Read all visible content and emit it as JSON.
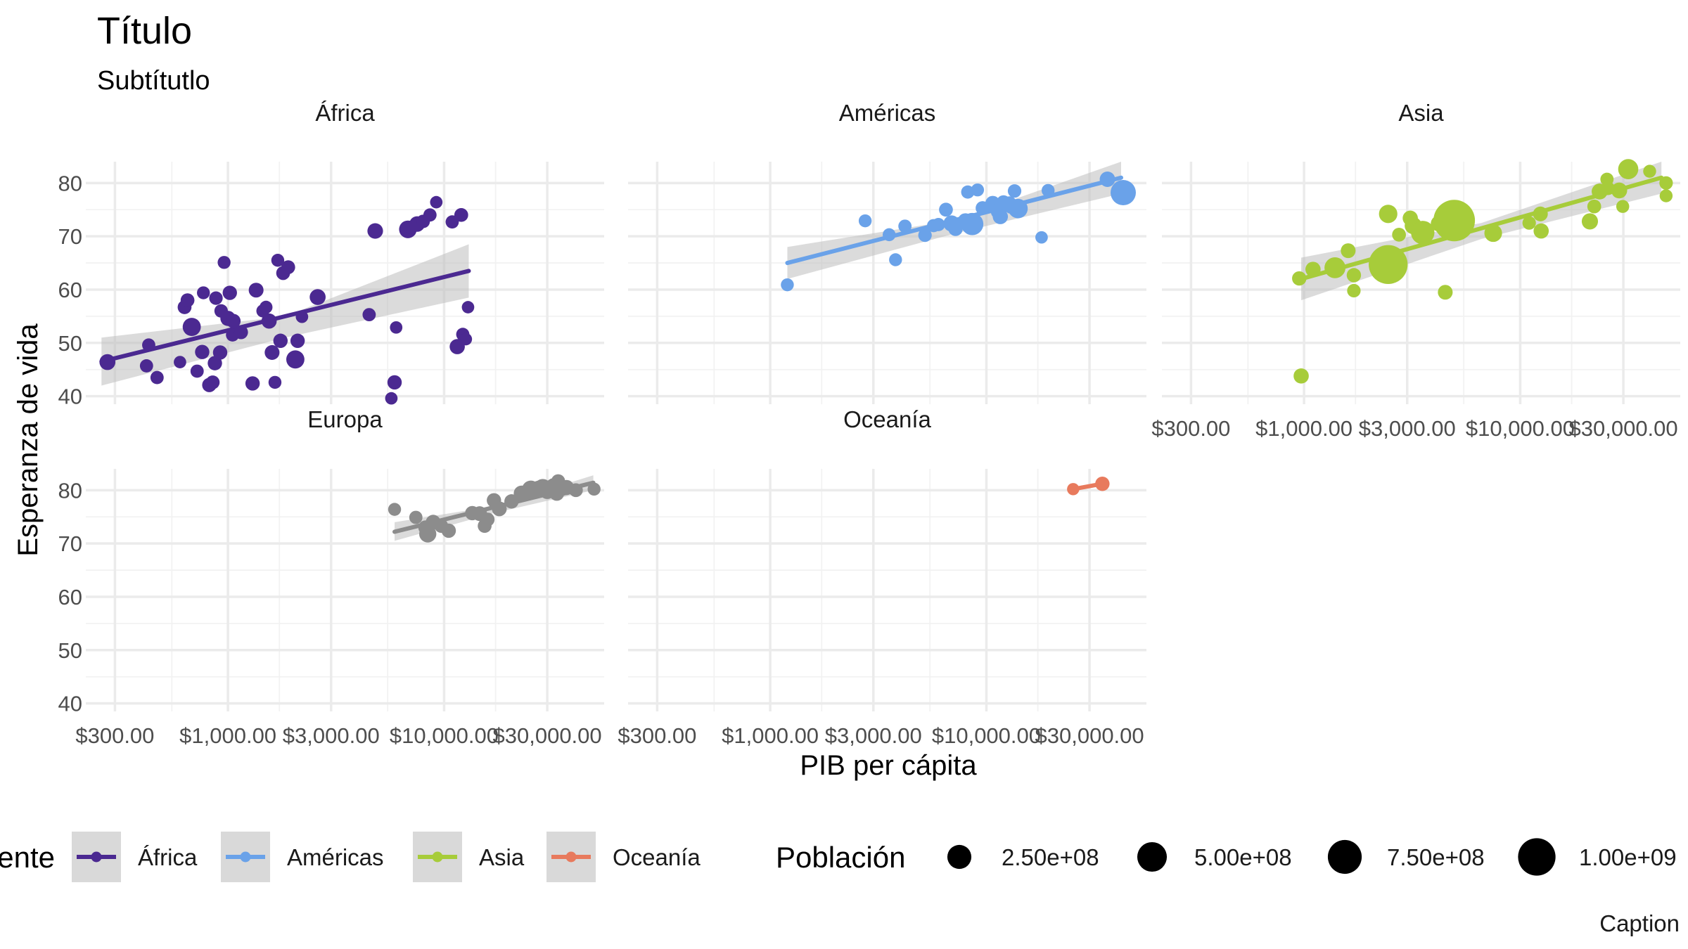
{
  "title": "Título",
  "subtitle": "Subtítutlo",
  "caption": "Caption",
  "colors": {
    "África": "#4B2991",
    "Américas": "#6AA2E9",
    "Asia": "#A7CC3A",
    "Europa": "#8C8C8C",
    "Oceanía": "#E87A5D",
    "ribbon": "#bdbdbd"
  },
  "legend": {
    "color_title": "Continente",
    "color_items": [
      "África",
      "Américas",
      "Asia",
      "Oceanía"
    ],
    "size_title": "Población",
    "size_items": [
      {
        "label": "2.50e+08",
        "value": 250000000
      },
      {
        "label": "5.00e+08",
        "value": 500000000
      },
      {
        "label": "7.50e+08",
        "value": 750000000
      },
      {
        "label": "1.00e+09",
        "value": 1000000000
      }
    ]
  },
  "chart_data": {
    "type": "scatter",
    "layout": "facet_wrap",
    "x_scale": "log10",
    "xlabel": "PIB per cápita",
    "ylabel": "Esperanza de vida",
    "xlim": [
      220,
      55000
    ],
    "ylim": [
      38.5,
      84
    ],
    "x_ticks": [
      300,
      1000,
      3000,
      10000,
      30000
    ],
    "x_tick_labels": [
      "$300.00",
      "$1,000.00",
      "$3,000.00",
      "$10,000.00",
      "$30,000.00"
    ],
    "y_ticks": [
      40,
      50,
      60,
      70,
      80
    ],
    "y_tick_labels": [
      "40",
      "50",
      "60",
      "70",
      "80"
    ],
    "grid": true,
    "legend_position": "bottom",
    "smooth": "lm with confidence band",
    "facets": [
      {
        "name": "África",
        "fit": {
          "x0": 260,
          "x1": 13000,
          "y0": 46.5,
          "y1": 63.5
        },
        "band": {
          "lo0": 42,
          "hi0": 51,
          "lomid": 51,
          "himid": 55,
          "lo1": 58.5,
          "hi1": 68.5
        },
        "points": [
          {
            "x": 277,
            "y": 46.4,
            "pop": 40000000
          },
          {
            "x": 420,
            "y": 45.7,
            "pop": 10000000
          },
          {
            "x": 430,
            "y": 49.6,
            "pop": 10000000
          },
          {
            "x": 470,
            "y": 43.5,
            "pop": 10000000
          },
          {
            "x": 600,
            "y": 46.4,
            "pop": 5000000
          },
          {
            "x": 630,
            "y": 56.7,
            "pop": 15000000
          },
          {
            "x": 650,
            "y": 58.0,
            "pop": 15000000
          },
          {
            "x": 680,
            "y": 53.0,
            "pop": 80000000
          },
          {
            "x": 720,
            "y": 44.7,
            "pop": 10000000
          },
          {
            "x": 760,
            "y": 48.3,
            "pop": 20000000
          },
          {
            "x": 770,
            "y": 59.4,
            "pop": 8000000
          },
          {
            "x": 820,
            "y": 42.1,
            "pop": 20000000
          },
          {
            "x": 850,
            "y": 42.6,
            "pop": 15000000
          },
          {
            "x": 870,
            "y": 46.2,
            "pop": 20000000
          },
          {
            "x": 880,
            "y": 58.4,
            "pop": 12000000
          },
          {
            "x": 920,
            "y": 48.2,
            "pop": 20000000
          },
          {
            "x": 930,
            "y": 56.0,
            "pop": 12000000
          },
          {
            "x": 960,
            "y": 65.1,
            "pop": 8000000
          },
          {
            "x": 1000,
            "y": 54.6,
            "pop": 30000000
          },
          {
            "x": 1020,
            "y": 59.4,
            "pop": 20000000
          },
          {
            "x": 1050,
            "y": 51.5,
            "pop": 10000000
          },
          {
            "x": 1060,
            "y": 54.1,
            "pop": 20000000
          },
          {
            "x": 1150,
            "y": 52.0,
            "pop": 15000000
          },
          {
            "x": 1300,
            "y": 42.4,
            "pop": 20000000
          },
          {
            "x": 1350,
            "y": 59.9,
            "pop": 25000000
          },
          {
            "x": 1450,
            "y": 56.0,
            "pop": 8000000
          },
          {
            "x": 1500,
            "y": 56.7,
            "pop": 8000000
          },
          {
            "x": 1550,
            "y": 54.1,
            "pop": 30000000
          },
          {
            "x": 1600,
            "y": 48.2,
            "pop": 25000000
          },
          {
            "x": 1650,
            "y": 42.6,
            "pop": 8000000
          },
          {
            "x": 1700,
            "y": 65.5,
            "pop": 8000000
          },
          {
            "x": 1750,
            "y": 50.4,
            "pop": 20000000
          },
          {
            "x": 1800,
            "y": 63.1,
            "pop": 15000000
          },
          {
            "x": 1900,
            "y": 64.2,
            "pop": 15000000
          },
          {
            "x": 2050,
            "y": 46.9,
            "pop": 80000000
          },
          {
            "x": 2100,
            "y": 50.4,
            "pop": 20000000
          },
          {
            "x": 2200,
            "y": 54.9,
            "pop": 5000000
          },
          {
            "x": 2600,
            "y": 58.6,
            "pop": 40000000
          },
          {
            "x": 4500,
            "y": 55.3,
            "pop": 10000000
          },
          {
            "x": 4800,
            "y": 71.0,
            "pop": 35000000
          },
          {
            "x": 5700,
            "y": 39.6,
            "pop": 5000000
          },
          {
            "x": 5900,
            "y": 42.6,
            "pop": 20000000
          },
          {
            "x": 6000,
            "y": 52.9,
            "pop": 5000000
          },
          {
            "x": 6800,
            "y": 71.3,
            "pop": 70000000
          },
          {
            "x": 7000,
            "y": 71.7,
            "pop": 10000000
          },
          {
            "x": 7500,
            "y": 72.3,
            "pop": 35000000
          },
          {
            "x": 8000,
            "y": 72.8,
            "pop": 12000000
          },
          {
            "x": 8600,
            "y": 74.0,
            "pop": 10000000
          },
          {
            "x": 9200,
            "y": 76.4,
            "pop": 5000000
          },
          {
            "x": 10900,
            "y": 72.7,
            "pop": 10000000
          },
          {
            "x": 12000,
            "y": 74.0,
            "pop": 15000000
          },
          {
            "x": 12200,
            "y": 51.6,
            "pop": 10000000
          },
          {
            "x": 12600,
            "y": 50.7,
            "pop": 5000000
          },
          {
            "x": 12900,
            "y": 56.7,
            "pop": 5000000
          },
          {
            "x": 11500,
            "y": 49.3,
            "pop": 30000000
          }
        ]
      },
      {
        "name": "Américas",
        "fit": {
          "x0": 1200,
          "x1": 42000,
          "y0": 65.0,
          "y1": 81.0
        },
        "band": {
          "lo0": 62,
          "hi0": 68,
          "lomid": 70.5,
          "himid": 73,
          "lo1": 78,
          "hi1": 84
        },
        "points": [
          {
            "x": 1200,
            "y": 60.9,
            "pop": 8000000
          },
          {
            "x": 2750,
            "y": 72.9,
            "pop": 8000000
          },
          {
            "x": 3550,
            "y": 70.3,
            "pop": 8000000
          },
          {
            "x": 3800,
            "y": 65.6,
            "pop": 8000000
          },
          {
            "x": 4200,
            "y": 71.9,
            "pop": 10000000
          },
          {
            "x": 5200,
            "y": 70.2,
            "pop": 12000000
          },
          {
            "x": 5700,
            "y": 72.0,
            "pop": 10000000
          },
          {
            "x": 6000,
            "y": 72.2,
            "pop": 10000000
          },
          {
            "x": 6500,
            "y": 75.0,
            "pop": 15000000
          },
          {
            "x": 6900,
            "y": 72.4,
            "pop": 45000000
          },
          {
            "x": 7200,
            "y": 71.4,
            "pop": 20000000
          },
          {
            "x": 8000,
            "y": 72.9,
            "pop": 30000000
          },
          {
            "x": 8200,
            "y": 78.3,
            "pop": 10000000
          },
          {
            "x": 8600,
            "y": 72.3,
            "pop": 190000000
          },
          {
            "x": 9100,
            "y": 78.7,
            "pop": 8000000
          },
          {
            "x": 9600,
            "y": 75.3,
            "pop": 15000000
          },
          {
            "x": 10700,
            "y": 76.2,
            "pop": 25000000
          },
          {
            "x": 11400,
            "y": 74.7,
            "pop": 40000000
          },
          {
            "x": 11600,
            "y": 73.7,
            "pop": 30000000
          },
          {
            "x": 12000,
            "y": 76.4,
            "pop": 15000000
          },
          {
            "x": 12800,
            "y": 76.2,
            "pop": 15000000
          },
          {
            "x": 13000,
            "y": 75.5,
            "pop": 12000000
          },
          {
            "x": 13500,
            "y": 78.5,
            "pop": 12000000
          },
          {
            "x": 14000,
            "y": 75.2,
            "pop": 110000000
          },
          {
            "x": 18000,
            "y": 69.8,
            "pop": 5000000
          },
          {
            "x": 19300,
            "y": 78.6,
            "pop": 8000000
          },
          {
            "x": 36300,
            "y": 80.7,
            "pop": 33000000
          },
          {
            "x": 42950,
            "y": 78.2,
            "pop": 300000000
          }
        ]
      },
      {
        "name": "Asia",
        "fit": {
          "x0": 970,
          "x1": 45000,
          "y0": 62.0,
          "y1": 81.0
        },
        "band": {
          "lo0": 58,
          "hi0": 66,
          "lomid": 69.5,
          "himid": 72.5,
          "lo1": 78,
          "hi1": 84
        },
        "points": [
          {
            "x": 970,
            "y": 43.8,
            "pop": 30000000
          },
          {
            "x": 950,
            "y": 62.1,
            "pop": 20000000
          },
          {
            "x": 1100,
            "y": 63.8,
            "pop": 30000000
          },
          {
            "x": 1390,
            "y": 64.1,
            "pop": 150000000
          },
          {
            "x": 1600,
            "y": 67.3,
            "pop": 25000000
          },
          {
            "x": 1700,
            "y": 59.8,
            "pop": 12000000
          },
          {
            "x": 1700,
            "y": 62.7,
            "pop": 20000000
          },
          {
            "x": 2450,
            "y": 64.7,
            "pop": 1110000000
          },
          {
            "x": 2450,
            "y": 74.2,
            "pop": 85000000
          },
          {
            "x": 2750,
            "y": 70.3,
            "pop": 15000000
          },
          {
            "x": 3100,
            "y": 73.4,
            "pop": 30000000
          },
          {
            "x": 3200,
            "y": 72.0,
            "pop": 60000000
          },
          {
            "x": 3540,
            "y": 70.7,
            "pop": 230000000
          },
          {
            "x": 4200,
            "y": 72.4,
            "pop": 40000000
          },
          {
            "x": 4700,
            "y": 72.9,
            "pop": 20000000
          },
          {
            "x": 4950,
            "y": 72.96,
            "pop": 1320000000
          },
          {
            "x": 4500,
            "y": 59.5,
            "pop": 25000000
          },
          {
            "x": 7500,
            "y": 70.6,
            "pop": 70000000
          },
          {
            "x": 11000,
            "y": 72.5,
            "pop": 12000000
          },
          {
            "x": 12500,
            "y": 71.0,
            "pop": 30000000
          },
          {
            "x": 12400,
            "y": 74.2,
            "pop": 25000000
          },
          {
            "x": 21000,
            "y": 72.8,
            "pop": 45000000
          },
          {
            "x": 22000,
            "y": 75.6,
            "pop": 15000000
          },
          {
            "x": 23300,
            "y": 78.4,
            "pop": 40000000
          },
          {
            "x": 25500,
            "y": 79.0,
            "pop": 12000000
          },
          {
            "x": 25200,
            "y": 80.7,
            "pop": 10000000
          },
          {
            "x": 28700,
            "y": 78.6,
            "pop": 40000000
          },
          {
            "x": 29800,
            "y": 75.6,
            "pop": 8000000
          },
          {
            "x": 31600,
            "y": 82.6,
            "pop": 127000000
          },
          {
            "x": 39700,
            "y": 82.2,
            "pop": 8000000
          },
          {
            "x": 47300,
            "y": 80.0,
            "pop": 12000000
          },
          {
            "x": 47300,
            "y": 77.6,
            "pop": 8000000
          }
        ]
      },
      {
        "name": "Europa",
        "fit": {
          "x0": 5900,
          "x1": 49000,
          "y0": 72.2,
          "y1": 81.4
        },
        "band": {
          "lo0": 70.5,
          "hi0": 74,
          "lomid": 75.7,
          "himid": 77,
          "lo1": 80,
          "hi1": 82.8
        },
        "points": [
          {
            "x": 5900,
            "y": 76.4,
            "pop": 8000000
          },
          {
            "x": 7400,
            "y": 74.9,
            "pop": 10000000
          },
          {
            "x": 8400,
            "y": 71.8,
            "pop": 60000000
          },
          {
            "x": 8200,
            "y": 73.0,
            "pop": 20000000
          },
          {
            "x": 8900,
            "y": 74.0,
            "pop": 25000000
          },
          {
            "x": 9700,
            "y": 73.3,
            "pop": 15000000
          },
          {
            "x": 10500,
            "y": 72.4,
            "pop": 20000000
          },
          {
            "x": 13500,
            "y": 75.7,
            "pop": 20000000
          },
          {
            "x": 14600,
            "y": 75.6,
            "pop": 25000000
          },
          {
            "x": 15400,
            "y": 73.3,
            "pop": 15000000
          },
          {
            "x": 15900,
            "y": 74.5,
            "pop": 15000000
          },
          {
            "x": 17000,
            "y": 78.1,
            "pop": 20000000
          },
          {
            "x": 18000,
            "y": 76.5,
            "pop": 25000000
          },
          {
            "x": 20500,
            "y": 77.9,
            "pop": 20000000
          },
          {
            "x": 22800,
            "y": 79.4,
            "pop": 35000000
          },
          {
            "x": 25200,
            "y": 80.1,
            "pop": 80000000
          },
          {
            "x": 27500,
            "y": 80.2,
            "pop": 60000000
          },
          {
            "x": 28600,
            "y": 80.5,
            "pop": 60000000
          },
          {
            "x": 30000,
            "y": 79.8,
            "pop": 35000000
          },
          {
            "x": 32000,
            "y": 80.9,
            "pop": 20000000
          },
          {
            "x": 33200,
            "y": 79.4,
            "pop": 25000000
          },
          {
            "x": 33700,
            "y": 81.7,
            "pop": 15000000
          },
          {
            "x": 35300,
            "y": 80.2,
            "pop": 12000000
          },
          {
            "x": 36800,
            "y": 80.5,
            "pop": 30000000
          },
          {
            "x": 40700,
            "y": 80.0,
            "pop": 15000000
          },
          {
            "x": 49400,
            "y": 80.2,
            "pop": 8000000
          }
        ]
      },
      {
        "name": "Oceanía",
        "fit": {
          "x0": 25200,
          "x1": 34400,
          "y0": 80.2,
          "y1": 81.2
        },
        "band": {
          "lo0": 80.2,
          "hi0": 80.2,
          "lomid": 80.7,
          "himid": 80.7,
          "lo1": 81.2,
          "hi1": 81.2
        },
        "points": [
          {
            "x": 25200,
            "y": 80.2,
            "pop": 4000000
          },
          {
            "x": 34400,
            "y": 81.2,
            "pop": 20000000
          }
        ]
      }
    ]
  }
}
